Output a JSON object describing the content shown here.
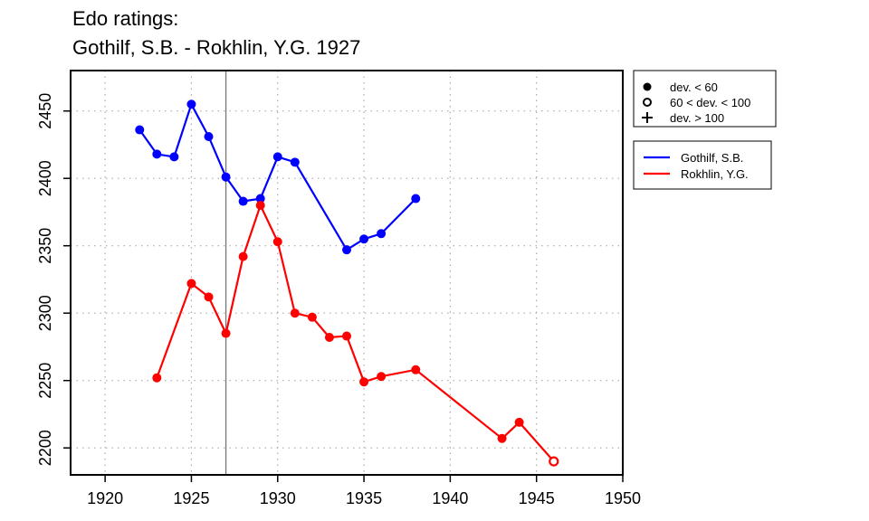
{
  "chart_data": {
    "type": "line",
    "title": [
      "Edo ratings:",
      "Gothilf, S.B. - Rokhlin, Y.G. 1927"
    ],
    "xlabel": "",
    "ylabel": "",
    "xlim": [
      1918,
      1950
    ],
    "ylim": [
      2180,
      2480
    ],
    "xticks": [
      1920,
      1925,
      1930,
      1935,
      1940,
      1945,
      1950
    ],
    "yticks": [
      2200,
      2250,
      2300,
      2350,
      2400,
      2450
    ],
    "grid": true,
    "vline_x": 1927,
    "legend_symbols": {
      "placement": "top-right",
      "items": [
        {
          "symbol": "filled-circle",
          "label": "dev. < 60"
        },
        {
          "symbol": "open-circle",
          "label": "60 < dev. < 100"
        },
        {
          "symbol": "plus",
          "label": "dev. > 100"
        }
      ]
    },
    "legend_series": {
      "placement": "top-right",
      "items": [
        {
          "label": "Gothilf, S.B.",
          "color": "#0000ff"
        },
        {
          "label": "Rokhlin, Y.G.",
          "color": "#ff0000"
        }
      ]
    },
    "series": [
      {
        "name": "Gothilf, S.B.",
        "color": "#0000ff",
        "points": [
          {
            "x": 1922,
            "y": 2436,
            "marker": "filled"
          },
          {
            "x": 1923,
            "y": 2418,
            "marker": "filled"
          },
          {
            "x": 1924,
            "y": 2416,
            "marker": "filled"
          },
          {
            "x": 1925,
            "y": 2455,
            "marker": "filled"
          },
          {
            "x": 1926,
            "y": 2431,
            "marker": "filled"
          },
          {
            "x": 1927,
            "y": 2401,
            "marker": "filled"
          },
          {
            "x": 1928,
            "y": 2383,
            "marker": "filled"
          },
          {
            "x": 1929,
            "y": 2385,
            "marker": "filled"
          },
          {
            "x": 1930,
            "y": 2416,
            "marker": "filled"
          },
          {
            "x": 1931,
            "y": 2412,
            "marker": "filled"
          },
          {
            "x": 1934,
            "y": 2347,
            "marker": "filled"
          },
          {
            "x": 1935,
            "y": 2355,
            "marker": "filled"
          },
          {
            "x": 1936,
            "y": 2359,
            "marker": "filled"
          },
          {
            "x": 1938,
            "y": 2385,
            "marker": "filled"
          }
        ]
      },
      {
        "name": "Rokhlin, Y.G.",
        "color": "#ff0000",
        "points": [
          {
            "x": 1923,
            "y": 2252,
            "marker": "filled"
          },
          {
            "x": 1925,
            "y": 2322,
            "marker": "filled"
          },
          {
            "x": 1926,
            "y": 2312,
            "marker": "filled"
          },
          {
            "x": 1927,
            "y": 2285,
            "marker": "filled"
          },
          {
            "x": 1928,
            "y": 2342,
            "marker": "filled"
          },
          {
            "x": 1929,
            "y": 2380,
            "marker": "filled"
          },
          {
            "x": 1930,
            "y": 2353,
            "marker": "filled"
          },
          {
            "x": 1931,
            "y": 2300,
            "marker": "filled"
          },
          {
            "x": 1932,
            "y": 2297,
            "marker": "filled"
          },
          {
            "x": 1933,
            "y": 2282,
            "marker": "filled"
          },
          {
            "x": 1934,
            "y": 2283,
            "marker": "filled"
          },
          {
            "x": 1935,
            "y": 2249,
            "marker": "filled"
          },
          {
            "x": 1936,
            "y": 2253,
            "marker": "filled"
          },
          {
            "x": 1938,
            "y": 2258,
            "marker": "filled"
          },
          {
            "x": 1943,
            "y": 2207,
            "marker": "filled"
          },
          {
            "x": 1944,
            "y": 2219,
            "marker": "filled"
          },
          {
            "x": 1946,
            "y": 2190,
            "marker": "open"
          }
        ]
      }
    ]
  }
}
